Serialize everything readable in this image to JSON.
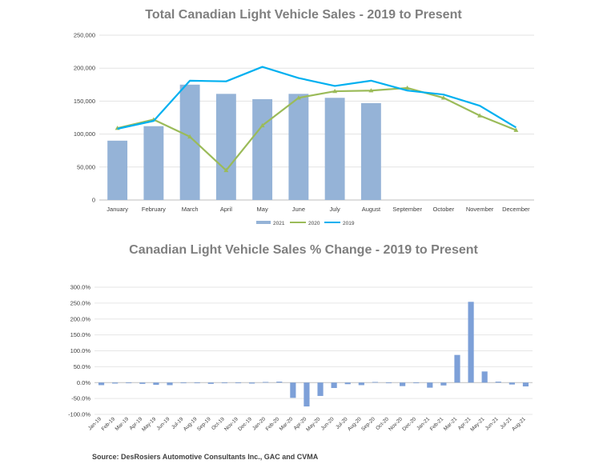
{
  "charts": [
    {
      "title": "Total Canadian Light Vehicle Sales - 2019 to Present",
      "type": "bar",
      "categories": [
        "January",
        "February",
        "March",
        "April",
        "May",
        "June",
        "July",
        "August",
        "September",
        "October",
        "November",
        "December"
      ],
      "y_ticks": [
        "0",
        "50,000",
        "100,000",
        "150,000",
        "200,000",
        "250,000"
      ],
      "ylim": [
        0,
        250000
      ],
      "grid": true,
      "legend_position": "bottom",
      "series": [
        {
          "name": "2021",
          "kind": "bar",
          "color": "#95b3d7",
          "values": [
            90000,
            112000,
            175000,
            161000,
            153000,
            161000,
            155000,
            147000,
            null,
            null,
            null,
            null
          ]
        },
        {
          "name": "2020",
          "kind": "line",
          "color": "#9bbb59",
          "marker": "triangle",
          "values": [
            109000,
            122000,
            96000,
            45000,
            113000,
            155000,
            165000,
            166000,
            170000,
            155000,
            128000,
            106000
          ]
        },
        {
          "name": "2019",
          "kind": "line",
          "color": "#00b0f0",
          "values": [
            108000,
            120000,
            181000,
            180000,
            202000,
            185000,
            173000,
            181000,
            166000,
            160000,
            143000,
            110000
          ]
        }
      ]
    },
    {
      "title": "Canadian Light Vehicle Sales % Change - 2019 to Present",
      "type": "bar",
      "categories": [
        "Jan-19",
        "Feb-19",
        "Mar-19",
        "Apr-19",
        "May-19",
        "Jun-19",
        "Jul-19",
        "Aug-19",
        "Sep-19",
        "Oct-19",
        "Nov-19",
        "Dec-19",
        "Jan-20",
        "Feb-20",
        "Mar-20",
        "Apr-20",
        "May-20",
        "Jun-20",
        "Jul-20",
        "Aug-20",
        "Sep-20",
        "Oct-20",
        "Nov-20",
        "Dec-20",
        "Jan-21",
        "Feb-21",
        "Mar-21",
        "Apr-21",
        "May-21",
        "Jun-21",
        "Jul-21",
        "Aug-21"
      ],
      "y_ticks": [
        "-100.0%",
        "-50.0%",
        "0.0%",
        "50.0%",
        "100.0%",
        "150.0%",
        "200.0%",
        "250.0%",
        "300.0%"
      ],
      "ylim": [
        -100,
        300
      ],
      "grid": true,
      "series": [
        {
          "name": "",
          "color": "#7da0d8",
          "values": [
            -8,
            -3,
            -2,
            -4,
            -7,
            -8,
            -2,
            -2,
            -4,
            -1,
            -2,
            -3,
            2,
            3,
            -48,
            -75,
            -42,
            -17,
            -5,
            -8,
            2,
            -1,
            -11,
            -2,
            -16,
            -9,
            87,
            254,
            35,
            3,
            -6,
            -12
          ]
        }
      ]
    }
  ],
  "source": "Source:  DesRosiers Automotive Consultants Inc., GAC and CVMA"
}
